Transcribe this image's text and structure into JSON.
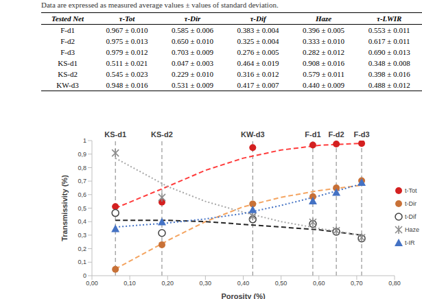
{
  "caption": "Data are expressed as measured average values ± values of standard deviation.",
  "table": {
    "columns": [
      "Tested Net",
      "τ-Tot",
      "τ-Dir",
      "τ-Dif",
      "Haze",
      "τ-LWIR"
    ],
    "rows": [
      [
        "F-d1",
        "0.967 ± 0.010",
        "0.585 ± 0.006",
        "0.383 ± 0.004",
        "0.396 ± 0.005",
        "0.553 ± 0.011"
      ],
      [
        "F-d2",
        "0.975 ± 0.013",
        "0.650 ± 0.010",
        "0.325 ± 0.004",
        "0.333 ± 0.010",
        "0.617 ± 0.011"
      ],
      [
        "F-d3",
        "0.979 ± 0.012",
        "0.703 ± 0.009",
        "0.276 ± 0.005",
        "0.282 ± 0.012",
        "0.690 ± 0.013"
      ],
      [
        "KS-d1",
        "0.511 ± 0.021",
        "0.047 ± 0.003",
        "0.464 ± 0.019",
        "0.908 ± 0.016",
        "0.348 ± 0.008"
      ],
      [
        "KS-d2",
        "0.545 ± 0.023",
        "0.229 ± 0.010",
        "0.316 ± 0.012",
        "0.579 ± 0.011",
        "0.398 ± 0.016"
      ],
      [
        "KW-d3",
        "0.948 ± 0.016",
        "0.531 ± 0.009",
        "0.417 ± 0.007",
        "0.440 ± 0.009",
        "0.488 ± 0.012"
      ]
    ]
  },
  "chart_data": {
    "type": "scatter",
    "x_label": "Porosity (%)",
    "y_label": "Transmissivity (%)",
    "xlim": [
      0,
      0.8
    ],
    "xticks": [
      {
        "value": 0,
        "label": "0,00"
      },
      {
        "value": 0.1,
        "label": "0,10"
      },
      {
        "value": 0.2,
        "label": "0,20"
      },
      {
        "value": 0.3,
        "label": "0,30"
      },
      {
        "value": 0.4,
        "label": "0,40"
      },
      {
        "value": 0.5,
        "label": "0,50"
      },
      {
        "value": 0.6,
        "label": "0,60"
      },
      {
        "value": 0.7,
        "label": "0,70"
      },
      {
        "value": 0.8,
        "label": "0,80"
      }
    ],
    "ylim": [
      0,
      1
    ],
    "yticks": [
      0,
      {
        "value": 0.1,
        "label": "0,1"
      },
      {
        "value": 0.2,
        "label": "0,2"
      },
      {
        "value": 0.3,
        "label": "0,3"
      },
      {
        "value": 0.4,
        "label": "0,4"
      },
      {
        "value": 0.5,
        "label": "0,5"
      },
      {
        "value": 0.6,
        "label": "0,6"
      },
      {
        "value": 0.7,
        "label": "0,7"
      },
      {
        "value": 0.8,
        "label": "0,8"
      },
      {
        "value": 0.9,
        "label": "0,9"
      },
      1
    ],
    "grid": false,
    "legend": "right",
    "reference_lines": [
      {
        "x": 0.062,
        "label": "KS-d1"
      },
      {
        "x": 0.185,
        "label": "KS-d2"
      },
      {
        "x": 0.425,
        "label": "KW-d3"
      },
      {
        "x": 0.584,
        "label": "F-d1"
      },
      {
        "x": 0.646,
        "label": "F-d2"
      },
      {
        "x": 0.713,
        "label": "F-d3"
      }
    ],
    "x": [
      0.062,
      0.185,
      0.425,
      0.584,
      0.646,
      0.713
    ],
    "series": [
      {
        "name": "t-Tot",
        "color": "#d42020",
        "marker": "circle",
        "values": [
          0.511,
          0.545,
          0.948,
          0.967,
          0.975,
          0.979
        ]
      },
      {
        "name": "t-Dir",
        "color": "#c87137",
        "marker": "circle",
        "values": [
          0.047,
          0.229,
          0.531,
          0.585,
          0.65,
          0.703
        ]
      },
      {
        "name": "t-Dif",
        "color": "#404040",
        "marker": "open_circle",
        "values": [
          0.464,
          0.316,
          0.417,
          0.383,
          0.325,
          0.276
        ]
      },
      {
        "name": "Haze",
        "color": "#8c8c8c",
        "marker": "star",
        "values": [
          0.908,
          0.579,
          0.44,
          0.396,
          0.333,
          0.282
        ]
      },
      {
        "name": "t-IR",
        "color": "#4472c4",
        "marker": "triangle",
        "values": [
          0.348,
          0.398,
          0.488,
          0.553,
          0.617,
          0.69
        ]
      }
    ],
    "trend_lines": [
      {
        "color": "#ff3b3b",
        "line_style": "dashed",
        "x": [
          0.062,
          0.2,
          0.3,
          0.4,
          0.5,
          0.6,
          0.713
        ],
        "values": [
          0.5,
          0.66,
          0.78,
          0.87,
          0.93,
          0.965,
          0.98
        ]
      },
      {
        "color": "#f4a460",
        "line_style": "dashed",
        "x": [
          0.062,
          0.2,
          0.3,
          0.4,
          0.5,
          0.6,
          0.713
        ],
        "values": [
          0.05,
          0.26,
          0.4,
          0.51,
          0.58,
          0.63,
          0.67
        ]
      },
      {
        "color": "#262626",
        "line_style": "dashed",
        "x": [
          0.062,
          0.2,
          0.3,
          0.4,
          0.5,
          0.6,
          0.713
        ],
        "values": [
          0.41,
          0.41,
          0.4,
          0.38,
          0.36,
          0.34,
          0.3
        ]
      },
      {
        "color": "#a6a6a6",
        "line_style": "dotted",
        "x": [
          0.062,
          0.2,
          0.3,
          0.4,
          0.5,
          0.6,
          0.713
        ],
        "values": [
          0.87,
          0.66,
          0.55,
          0.47,
          0.4,
          0.35,
          0.3
        ]
      },
      {
        "color": "#4472c4",
        "line_style": "dotted",
        "x": [
          0.062,
          0.2,
          0.3,
          0.4,
          0.5,
          0.6,
          0.713
        ],
        "values": [
          0.36,
          0.39,
          0.42,
          0.46,
          0.52,
          0.59,
          0.68
        ]
      }
    ]
  }
}
